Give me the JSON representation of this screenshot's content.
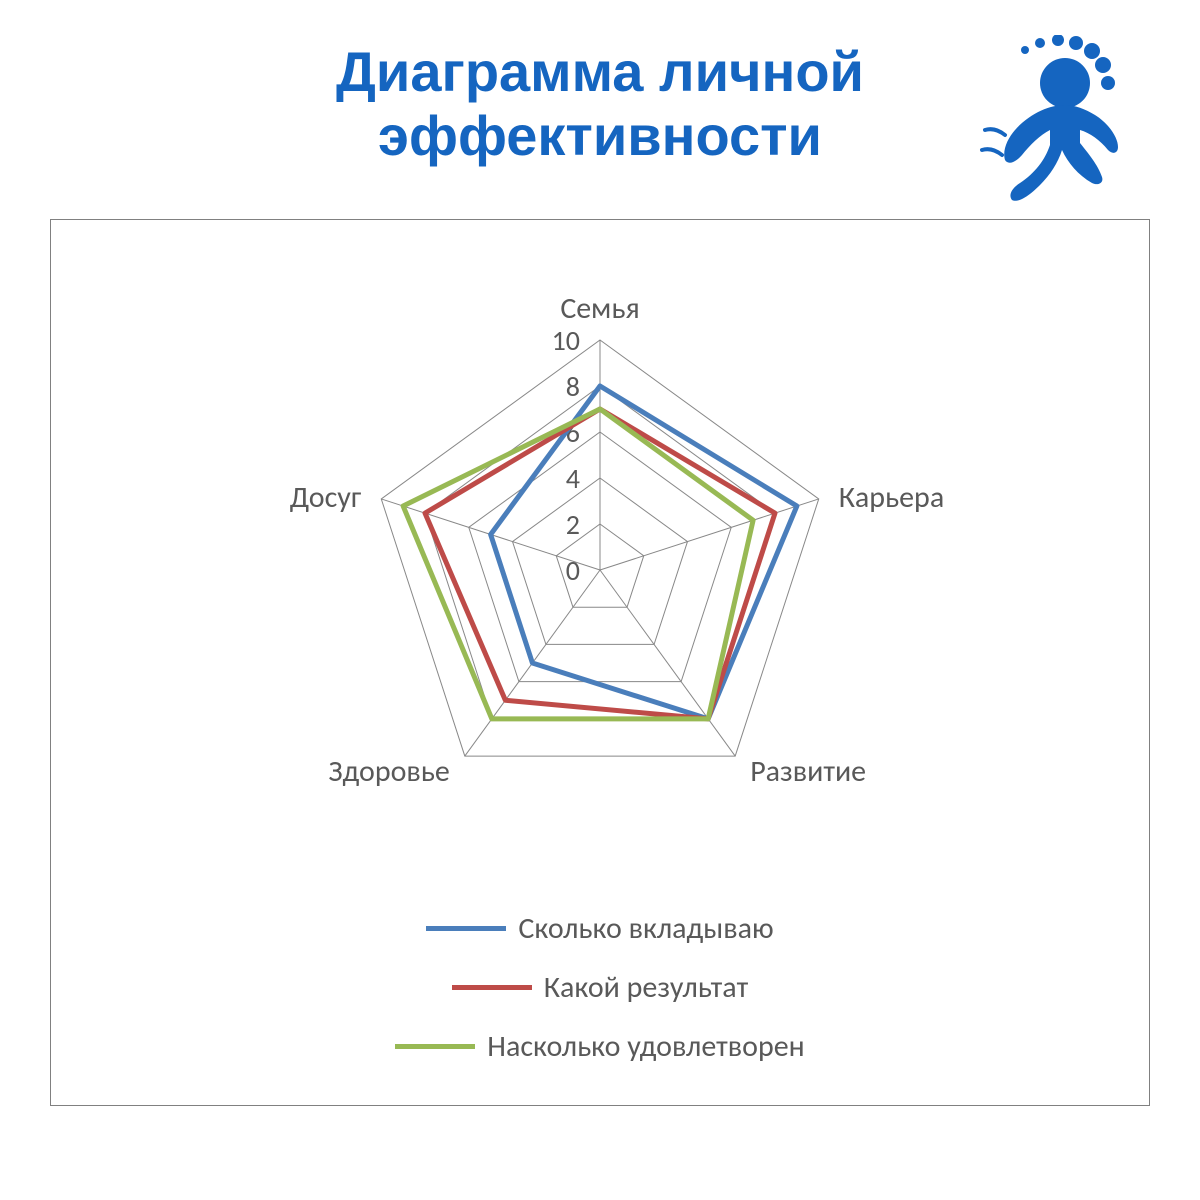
{
  "title": "Диаграмма личной эффективности",
  "logo_color": "#1565c0",
  "chart": {
    "type": "radar",
    "axes": [
      "Семья",
      "Карьера",
      "Развитие",
      "Здоровье",
      "Досуг"
    ],
    "ticks": [
      0,
      2,
      4,
      6,
      8,
      10
    ],
    "max": 10,
    "grid_color": "#888888",
    "grid_width": 1,
    "frame_border": "#808080",
    "background": "#ffffff",
    "label_color": "#595959",
    "label_fontsize": 30,
    "tick_fontsize": 28,
    "line_width": 5,
    "series": [
      {
        "name": "Сколько вкладываю",
        "color": "#4a7ebb",
        "values": [
          8,
          9,
          8,
          5,
          5
        ]
      },
      {
        "name": "Какой результат",
        "color": "#be4b48",
        "values": [
          7,
          8,
          8,
          7,
          8
        ]
      },
      {
        "name": "Насколько удовлетворен",
        "color": "#98b954",
        "values": [
          7,
          7,
          8,
          8,
          9
        ]
      }
    ]
  },
  "legend": {
    "items": [
      {
        "label": "Сколько вкладываю",
        "color": "#4a7ebb"
      },
      {
        "label": "Какой результат",
        "color": "#be4b48"
      },
      {
        "label": "Насколько удовлетворен",
        "color": "#98b954"
      }
    ]
  }
}
